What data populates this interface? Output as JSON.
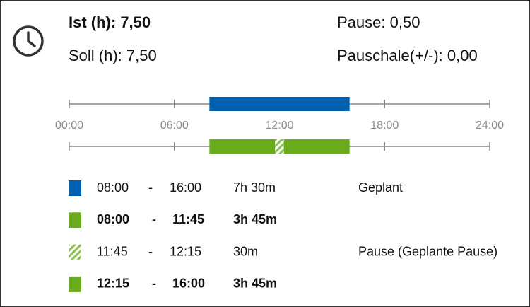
{
  "summary": {
    "ist": "Ist (h): 7,50",
    "soll": "Soll (h): 7,50",
    "pause": "Pause: 0,50",
    "pauschale": "Pauschale(+/-): 0,00"
  },
  "timeline": {
    "ticks": [
      "00:00",
      "06:00",
      "12:00",
      "18:00",
      "24:00"
    ]
  },
  "separator": "-",
  "entries": [
    {
      "start": "08:00",
      "end": "16:00",
      "duration": "7h 30m",
      "label": "Geplant",
      "kind": "planned"
    },
    {
      "start": "08:00",
      "end": "11:45",
      "duration": "3h 45m",
      "kind": "work"
    },
    {
      "start": "11:45",
      "end": "12:15",
      "duration": "30m",
      "label": "Pause (Geplante Pause)",
      "kind": "pause"
    },
    {
      "start": "12:15",
      "end": "16:00",
      "duration": "3h 45m",
      "kind": "work"
    }
  ]
}
